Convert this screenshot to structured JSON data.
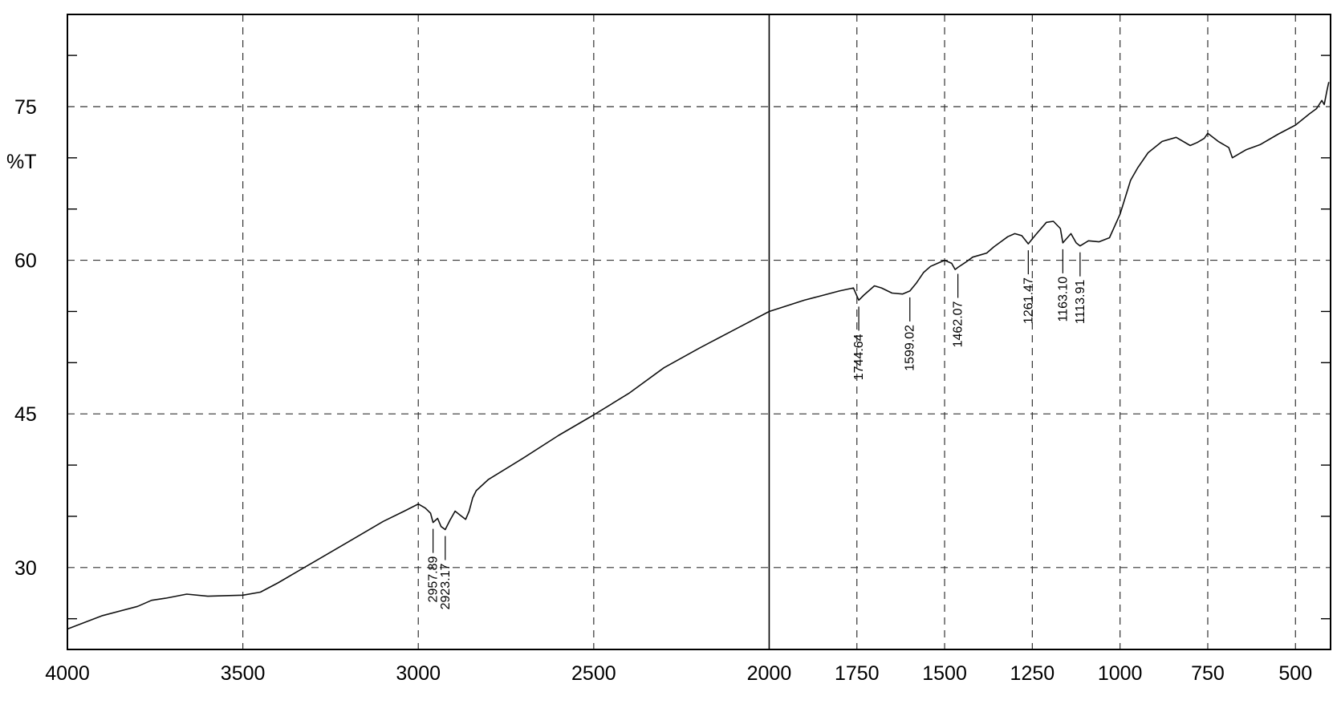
{
  "chart_data": {
    "type": "line",
    "xlabel": "",
    "ylabel": "%T",
    "xlim": [
      4000,
      400
    ],
    "ylim": [
      22,
      84
    ],
    "x_ticks": [
      4000,
      3500,
      3000,
      2500,
      2000,
      1750,
      1500,
      1250,
      1000,
      750,
      500
    ],
    "x_tick_labels": [
      "4000",
      "3500",
      "3000",
      "2500",
      "2000",
      "1750",
      "1500",
      "1250",
      "1000",
      "750",
      "500"
    ],
    "y_ticks": [
      30,
      45,
      60,
      75
    ],
    "y_tick_labels": [
      "30",
      "45",
      "60",
      "75"
    ],
    "y_minor_ticks": [
      25,
      35,
      40,
      50,
      55,
      65,
      70,
      80
    ],
    "grid": true,
    "solid_gridline_x": 2000,
    "series": [
      {
        "x": [
          4000,
          3900,
          3800,
          3760,
          3720,
          3660,
          3600,
          3500,
          3450,
          3400,
          3300,
          3200,
          3100,
          3040,
          3000,
          2980,
          2965,
          2957.89,
          2945,
          2935,
          2923.17,
          2910,
          2895,
          2880,
          2865,
          2855,
          2845,
          2835,
          2800,
          2700,
          2600,
          2500,
          2400,
          2300,
          2200,
          2100,
          2000,
          1900,
          1800,
          1760,
          1744.64,
          1730,
          1700,
          1680,
          1650,
          1620,
          1599.02,
          1580,
          1560,
          1540,
          1520,
          1500,
          1480,
          1470,
          1462.07,
          1440,
          1420,
          1400,
          1380,
          1360,
          1340,
          1320,
          1300,
          1280,
          1261.47,
          1240,
          1210,
          1190,
          1170,
          1163.1,
          1140,
          1125,
          1113.91,
          1090,
          1060,
          1030,
          1000,
          970,
          950,
          920,
          880,
          840,
          800,
          780,
          760,
          750,
          720,
          690,
          680,
          660,
          640,
          600,
          550,
          500,
          460,
          440,
          425,
          418,
          410,
          405
        ],
        "y": [
          24,
          25.3,
          26.2,
          26.8,
          27.0,
          27.4,
          27.2,
          27.3,
          27.6,
          28.5,
          30.5,
          32.5,
          34.5,
          35.5,
          36.2,
          35.8,
          35.3,
          34.4,
          34.8,
          34.0,
          33.7,
          34.6,
          35.5,
          35.1,
          34.7,
          35.5,
          36.8,
          37.5,
          38.6,
          40.7,
          42.9,
          44.9,
          47.0,
          49.5,
          51.4,
          53.2,
          55.0,
          56.1,
          57.0,
          57.3,
          56.1,
          56.6,
          57.5,
          57.3,
          56.8,
          56.7,
          57.0,
          57.8,
          58.8,
          59.4,
          59.7,
          60.0,
          59.7,
          59.1,
          59.3,
          59.8,
          60.3,
          60.5,
          60.7,
          61.3,
          61.8,
          62.3,
          62.6,
          62.4,
          61.6,
          62.5,
          63.7,
          63.8,
          63.1,
          61.7,
          62.6,
          61.7,
          61.4,
          61.9,
          61.8,
          62.2,
          64.5,
          67.8,
          69.0,
          70.5,
          71.6,
          72.0,
          71.2,
          71.5,
          71.9,
          72.4,
          71.6,
          71.0,
          70.0,
          70.4,
          70.8,
          71.3,
          72.3,
          73.2,
          74.3,
          74.8,
          75.6,
          75.2,
          76.6,
          77.4
        ]
      }
    ],
    "annotations": [
      {
        "x": 2957.89,
        "text": "2957.89"
      },
      {
        "x": 2923.17,
        "text": "2923.17"
      },
      {
        "x": 1744.64,
        "text": "1744.64"
      },
      {
        "x": 1599.02,
        "text": "1599.02"
      },
      {
        "x": 1462.07,
        "text": "1462.07"
      },
      {
        "x": 1261.47,
        "text": "1261.47"
      },
      {
        "x": 1163.1,
        "text": "1163.10"
      },
      {
        "x": 1113.91,
        "text": "1113.91"
      }
    ]
  }
}
